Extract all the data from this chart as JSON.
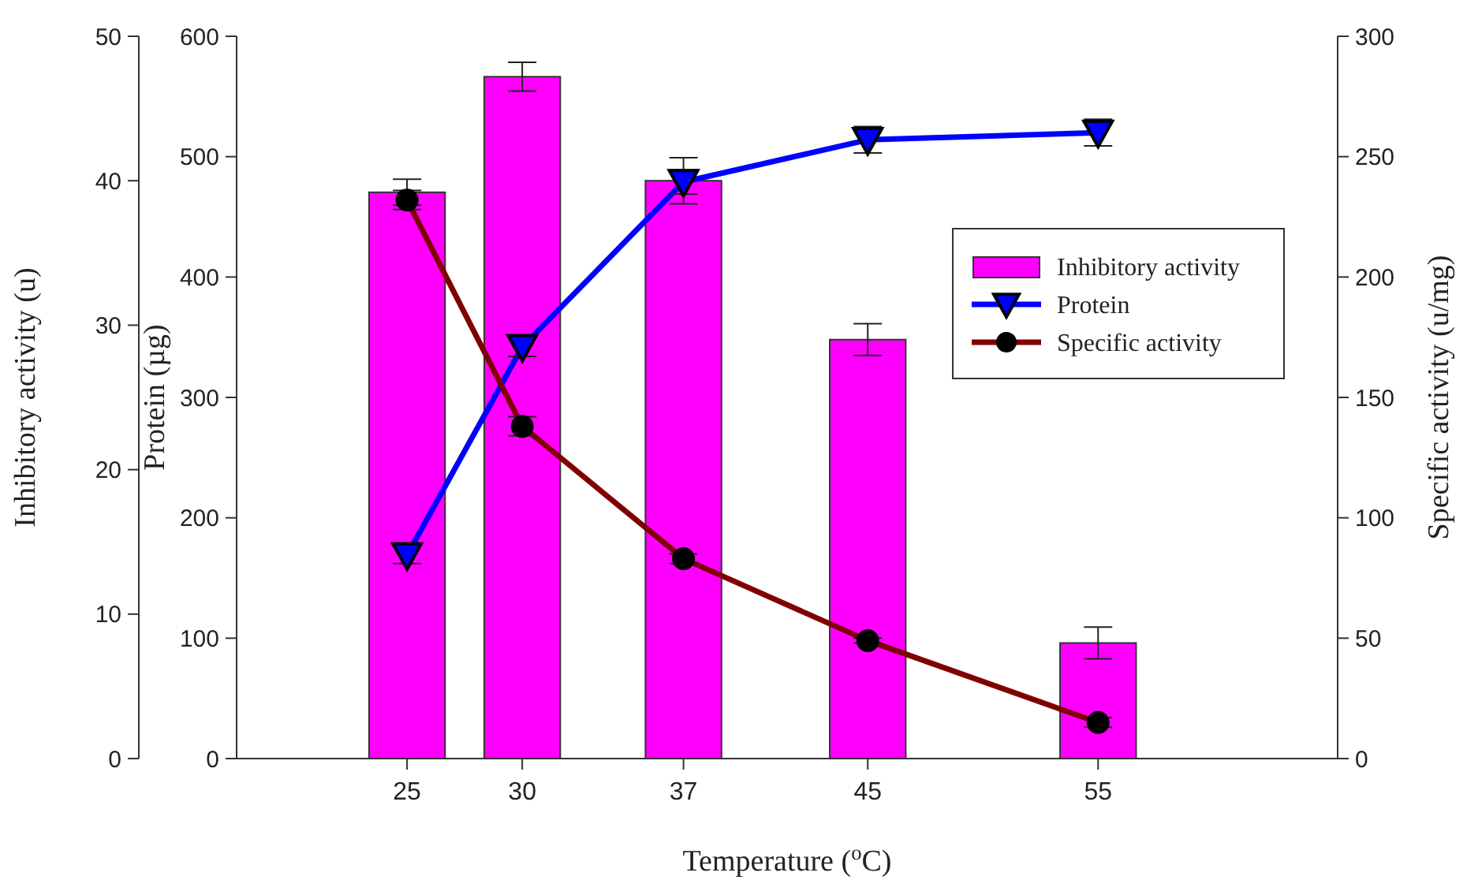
{
  "chart_data": {
    "type": "bar",
    "xlabel": "Temperature ($^{o}$C)",
    "ylabel": "Inhibitory activity (u)",
    "y3label": "Protein (µg)",
    "y2label": "Specific activity (u/mg)",
    "x": [
      25,
      30,
      37,
      45,
      55
    ],
    "xlim": [
      17.6,
      65.4
    ],
    "xticks": [
      25,
      30,
      37,
      45,
      55
    ],
    "ylim": [
      0,
      50
    ],
    "yticks": [
      0,
      10,
      20,
      30,
      40,
      50
    ],
    "y3lim": [
      0,
      600
    ],
    "y3ticks": [
      0,
      100,
      200,
      300,
      400,
      500,
      600
    ],
    "y2lim": [
      0,
      300
    ],
    "y2ticks": [
      0,
      50,
      100,
      150,
      200,
      250,
      300
    ],
    "legend": "top right",
    "grid": false,
    "series": [
      {
        "name": "Inhibitory activity",
        "color": "#ff00ff",
        "values": [
          39.2,
          47.2,
          40.0,
          29.0,
          8.0
        ],
        "errors": [
          0.9,
          1.0,
          1.6,
          1.1,
          1.1
        ]
      },
      {
        "name": "Protein",
        "type": "line",
        "axis": "y3",
        "color": "#0000ff",
        "marker": "triangle",
        "values": [
          169,
          342,
          479,
          514,
          520
        ],
        "errors": [
          7,
          8,
          10,
          11,
          11
        ]
      },
      {
        "name": "Specific activity",
        "type": "line",
        "axis": "y2",
        "color": "#800000",
        "marker": "circle",
        "values": [
          232,
          138,
          83,
          49,
          15
        ],
        "errors": [
          4,
          4,
          2,
          1,
          2
        ]
      }
    ]
  }
}
